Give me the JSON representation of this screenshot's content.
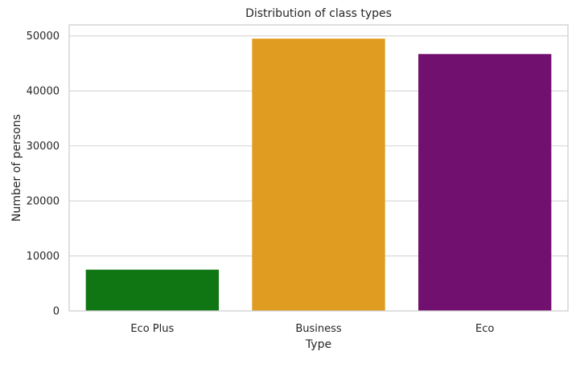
{
  "chart_data": {
    "type": "bar",
    "title": "Distribution of class types",
    "xlabel": "Type",
    "ylabel": "Number of persons",
    "categories": [
      "Eco Plus",
      "Business",
      "Eco"
    ],
    "values": [
      7500,
      49500,
      46700
    ],
    "colors": [
      "#107614",
      "#e09c20",
      "#721070"
    ],
    "ylim": [
      0,
      52000
    ],
    "yticks": [
      0,
      10000,
      20000,
      30000,
      40000,
      50000
    ],
    "ytick_labels": [
      "0",
      "10000",
      "20000",
      "30000",
      "40000",
      "50000"
    ],
    "grid": true,
    "grid_axis": "y",
    "legend": false
  }
}
